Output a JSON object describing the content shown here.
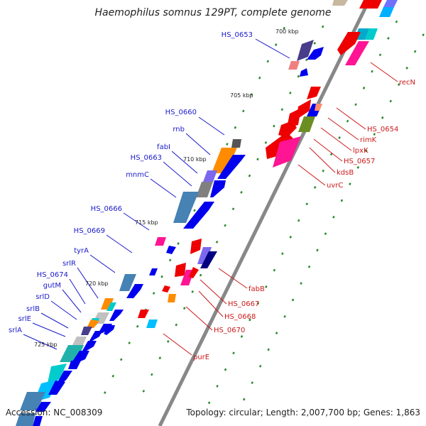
{
  "title": "Haemophilus somnus 129PT, complete genome",
  "accession": "Accession: NC_008309",
  "topology": "Topology: circular; Length: 2,007,700 bp; Genes: 1,863",
  "kbp_marks": [
    "700 kbp",
    "705 kbp",
    "710 kbp",
    "715 kbp",
    "720 kbp",
    "725 kbp"
  ],
  "labels_left": [
    "HS_0653",
    "HS_0660",
    "rnb",
    "fabI",
    "HS_0663",
    "mnmC",
    "HS_0666",
    "HS_0669",
    "tyrA",
    "srlR",
    "HS_0674",
    "gutM",
    "srlD",
    "srlB",
    "srlE",
    "srlA"
  ],
  "labels_right": [
    "recN",
    "HS_0654",
    "rimK",
    "lpxK",
    "HS_0657",
    "kdsB",
    "uvrC",
    "fabB",
    "HS_0667",
    "HS_0668",
    "HS_0670",
    "purE"
  ],
  "colors": {
    "forward_cds": "#0000ee",
    "reverse_cds": "#ee0000",
    "backbone": "#888888",
    "left_label": "#1a1acc",
    "right_label": "#cc1a1a",
    "tick": "#2e8b2e"
  }
}
